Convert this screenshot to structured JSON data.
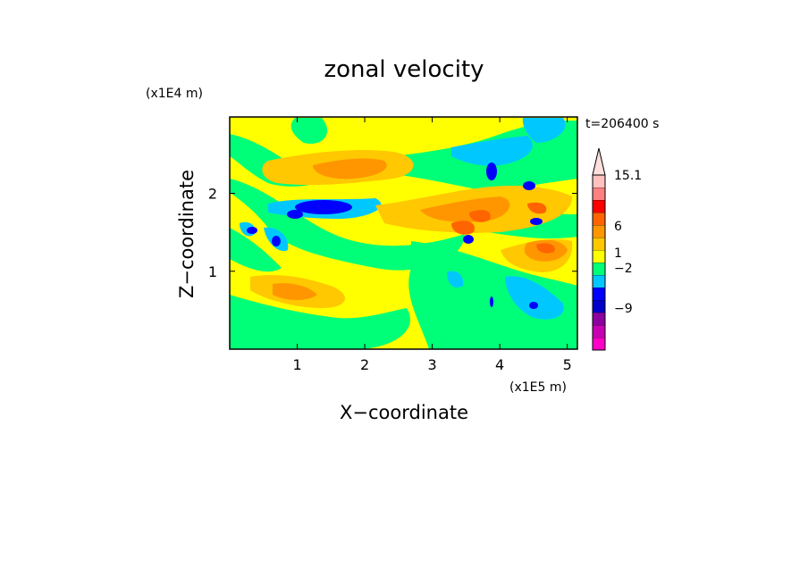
{
  "chart_data": {
    "type": "heatmap",
    "title": "zonal velocity",
    "time_label": "t=206400 s",
    "xlabel": "X−coordinate",
    "ylabel": "Z−coordinate",
    "x_unit": "(x1E5 m)",
    "y_unit": "(x1E4 m)",
    "xlim": [
      0,
      5.15
    ],
    "ylim": [
      0,
      2.98
    ],
    "x_ticks": [
      1,
      2,
      3,
      4,
      5
    ],
    "y_ticks": [
      1,
      2
    ],
    "x_tick_labels": [
      "1",
      "2",
      "3",
      "4",
      "5"
    ],
    "y_tick_labels": [
      "1",
      "2"
    ],
    "colorbar": {
      "labels": [
        {
          "text": "15.1",
          "value": 15.1
        },
        {
          "text": "6",
          "value": 6
        },
        {
          "text": "1",
          "value": 1
        },
        {
          "text": "−2",
          "value": -2
        },
        {
          "text": "−9",
          "value": -9
        }
      ],
      "levels": [
        {
          "color": "#ff00c8"
        },
        {
          "color": "#c800b4"
        },
        {
          "color": "#8c00a0"
        },
        {
          "color": "#0000c8"
        },
        {
          "color": "#0000ff"
        },
        {
          "color": "#00c8ff"
        },
        {
          "color": "#00ff78"
        },
        {
          "color": "#ffff00"
        },
        {
          "color": "#ffc800"
        },
        {
          "color": "#ff9600"
        },
        {
          "color": "#ff6400"
        },
        {
          "color": "#ff0000"
        },
        {
          "color": "#ff8080"
        },
        {
          "color": "#ffc0c0"
        }
      ],
      "top_arrow_color": "#ffdede"
    }
  }
}
